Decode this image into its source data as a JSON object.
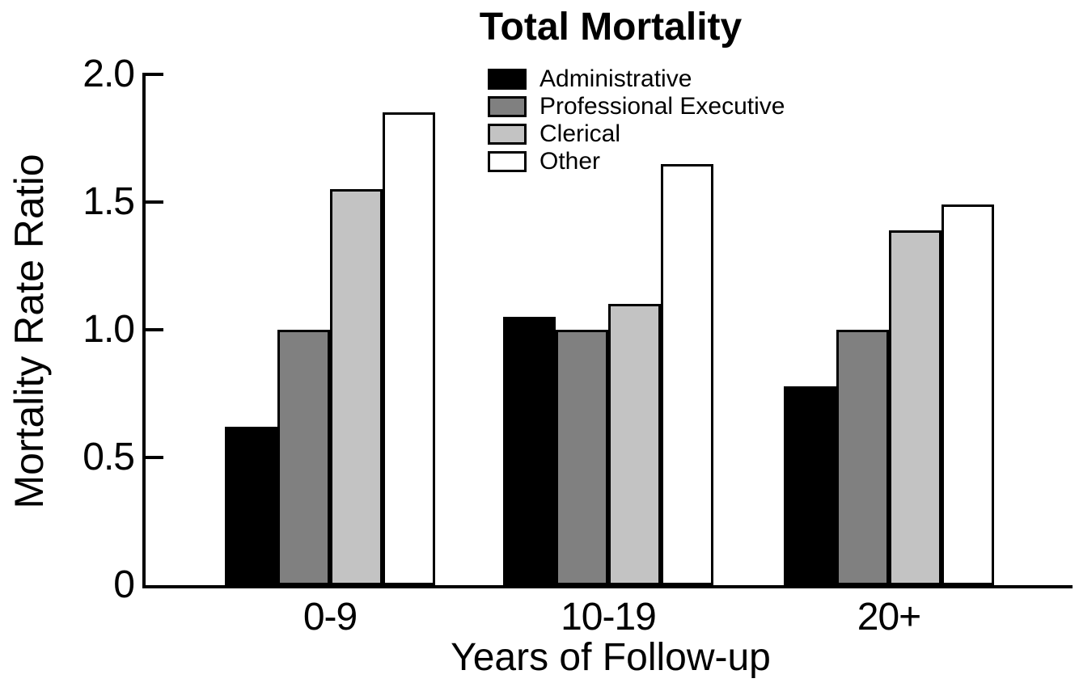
{
  "chart_data": {
    "type": "bar",
    "title": "Total Mortality",
    "categories": [
      "0-9",
      "10-19",
      "20+"
    ],
    "series": [
      {
        "name": "Administrative",
        "color": "#000000",
        "values": [
          0.62,
          1.05,
          0.78
        ]
      },
      {
        "name": "Professional Executive",
        "color": "#808080",
        "values": [
          1.0,
          1.0,
          1.0
        ]
      },
      {
        "name": "Clerical",
        "color": "#c3c3c3",
        "values": [
          1.55,
          1.1,
          1.39
        ]
      },
      {
        "name": "Other",
        "color": "#ffffff",
        "values": [
          1.85,
          1.65,
          1.49
        ]
      }
    ],
    "xlabel": "Years of Follow-up",
    "ylabel": "Mortality Rate Ratio",
    "ylim": [
      0,
      2.0
    ],
    "yticks": [
      0,
      0.5,
      1.0,
      1.5,
      2.0
    ],
    "ytick_labels": [
      "0",
      "0.5",
      "1.0",
      "1.5",
      "2.0"
    ],
    "legend_position": "top-center",
    "grid": false,
    "bar_outline_color": "#000000",
    "axis_color": "#000000"
  }
}
